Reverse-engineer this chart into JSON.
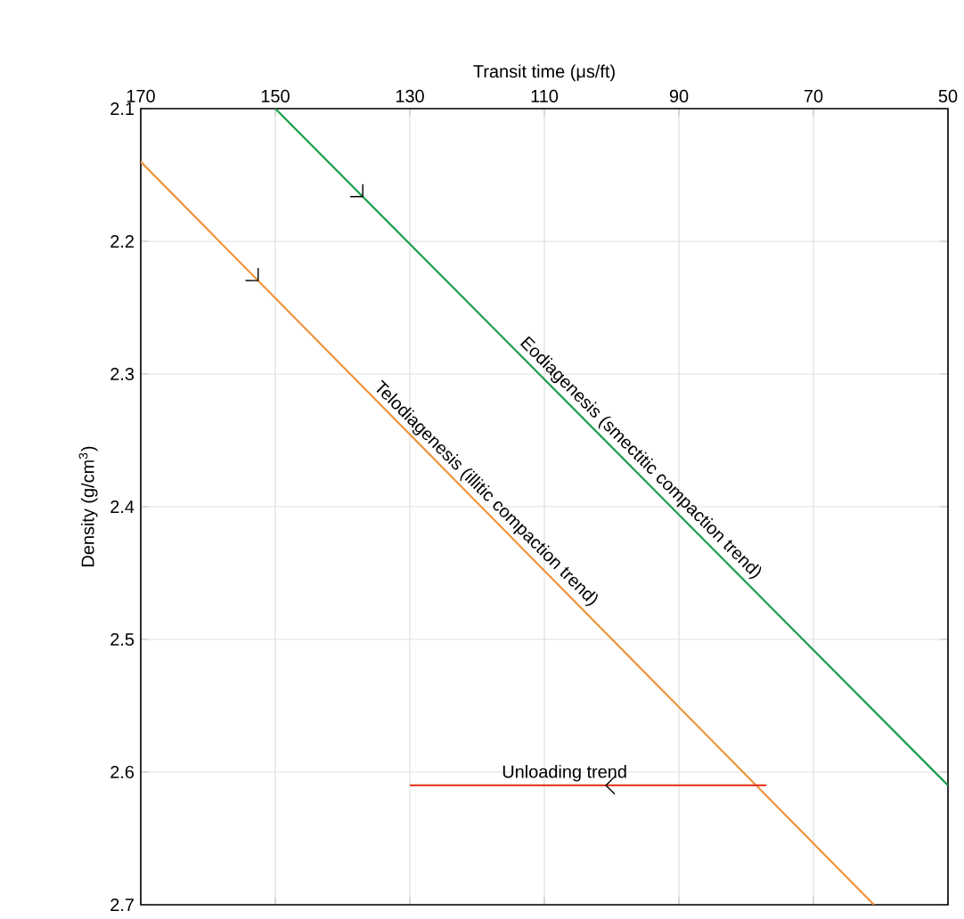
{
  "chart_data": {
    "type": "line",
    "xlabel": "Transit time (μs/ft)",
    "ylabel": "Density (g/cm$^{3}$)",
    "xlim": [
      170,
      50
    ],
    "xticks": [
      170,
      150,
      130,
      110,
      90,
      70,
      50
    ],
    "ylim": [
      2.7,
      2.1
    ],
    "yticks": [
      2.1,
      2.2,
      2.3,
      2.4,
      2.5,
      2.6,
      2.7
    ],
    "grid": true,
    "marker": "none",
    "line_style": "solid",
    "series": [
      {
        "color": "#1a9c4a",
        "x": [
          150,
          50
        ],
        "values": [
          2.1,
          2.61
        ]
      },
      {
        "color": "#f0923a",
        "x": [
          170,
          61
        ],
        "values": [
          2.14,
          2.7
        ]
      },
      {
        "color": "#e8412c",
        "x": [
          77,
          130
        ],
        "values": [
          2.61,
          2.61
        ]
      }
    ],
    "annotations": [
      {
        "text": "Eodiagenesis (smectitic compaction trend)",
        "x": 97,
        "y": 2.37
      },
      {
        "text": "Telodiagenesis (illitic compaction trend)",
        "x": 120,
        "y": 2.397
      },
      {
        "text": "Unloading trend",
        "x": 107,
        "y": 2.61
      }
    ]
  }
}
